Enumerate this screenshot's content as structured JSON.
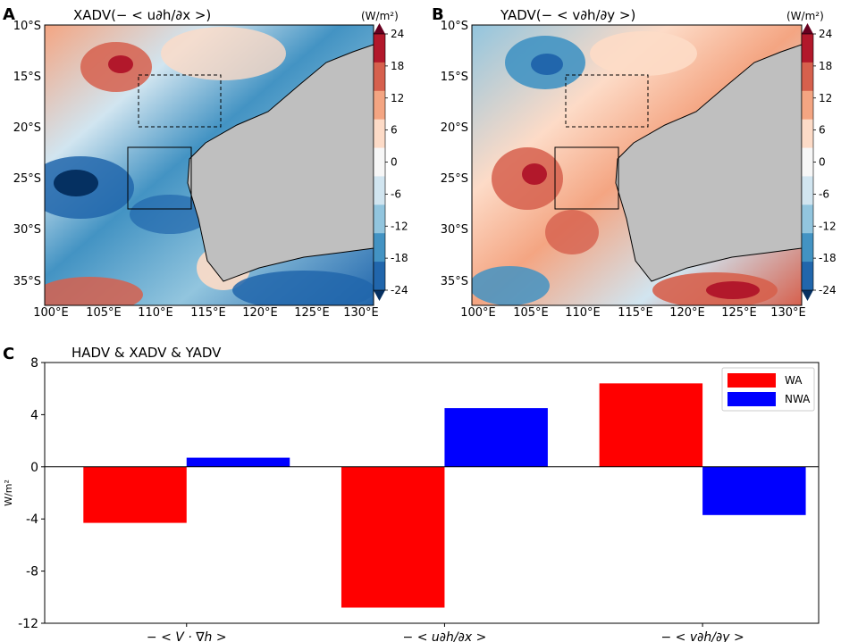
{
  "panels": {
    "A": {
      "label": "A",
      "title": "XADV(− < u∂h/∂x >)",
      "cbar_unit": "(W/m²)"
    },
    "B": {
      "label": "B",
      "title": "YADV(− < v∂h/∂y >)",
      "cbar_unit": "(W/m²)"
    },
    "C": {
      "label": "C",
      "title": "HADV & XADV & YADV",
      "ylabel": "W/m²"
    }
  },
  "map_axes": {
    "lon_ticks": [
      "100°E",
      "105°E",
      "110°E",
      "115°E",
      "120°E",
      "125°E",
      "130°E"
    ],
    "lat_ticks": [
      "10°S",
      "15°S",
      "20°S",
      "25°S",
      "30°S",
      "35°S"
    ]
  },
  "colorbar": {
    "ticks": [
      "24",
      "18",
      "12",
      "6",
      "0",
      "-6",
      "-12",
      "-18",
      "-24"
    ],
    "colors": [
      "#67001f",
      "#b2182b",
      "#d6604d",
      "#f4a582",
      "#fddbc7",
      "#f7f7f7",
      "#d1e5f0",
      "#92c5de",
      "#4393c3",
      "#2166ac",
      "#053061"
    ]
  },
  "chart_data": {
    "type": "bar",
    "title": "HADV & XADV & YADV",
    "categories": [
      "− < V · ∇h >",
      "− < u∂h/∂x >",
      "− < v∂h/∂y >"
    ],
    "series": [
      {
        "name": "WA",
        "color": "#ff0000",
        "values": [
          -4.3,
          -10.8,
          6.4
        ]
      },
      {
        "name": "NWA",
        "color": "#0000ff",
        "values": [
          0.7,
          4.5,
          -3.7
        ]
      }
    ],
    "ylabel": "W/m²",
    "ylim": [
      -12,
      8
    ],
    "yticks": [
      -12,
      -8,
      -4,
      0,
      4,
      8
    ],
    "legend": "top-right"
  }
}
